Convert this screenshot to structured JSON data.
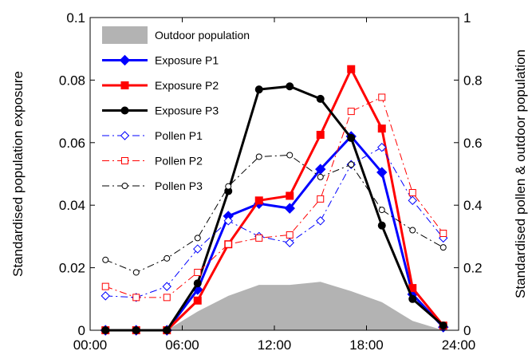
{
  "chart_data": {
    "type": "line",
    "x_ticks": [
      "00:00",
      "06:00",
      "12:00",
      "18:00",
      "24:00"
    ],
    "x_tick_hours": [
      0,
      6,
      12,
      18,
      24
    ],
    "xlim_hours": [
      0,
      24
    ],
    "ylabel_left": "Standardised population exposure",
    "ylabel_right": "Standardised pollen & outdoor population",
    "ylim_left": [
      0,
      0.1
    ],
    "ylim_right": [
      0,
      1
    ],
    "y_ticks_left": [
      "0",
      "0.02",
      "0.04",
      "0.06",
      "0.08",
      "0.1"
    ],
    "y_ticks_left_values": [
      0,
      0.02,
      0.04,
      0.06,
      0.08,
      0.1
    ],
    "y_ticks_right": [
      "0",
      "0.2",
      "0.4",
      "0.6",
      "0.8",
      "1"
    ],
    "y_ticks_right_values": [
      0,
      0.2,
      0.4,
      0.6,
      0.8,
      1
    ],
    "grid": false,
    "legend_position": "top-left",
    "x_hours": [
      1,
      3,
      5,
      7,
      9,
      11,
      13,
      15,
      17,
      19,
      21,
      23
    ],
    "area": {
      "name": "Outdoor population",
      "axis": "right",
      "color": "#b3b3b3",
      "x_hours": [
        5,
        7,
        9,
        11,
        13,
        15,
        17,
        19,
        21,
        23
      ],
      "values": [
        0,
        0.06,
        0.11,
        0.145,
        0.145,
        0.155,
        0.125,
        0.09,
        0.03,
        0
      ]
    },
    "series": [
      {
        "name": "Exposure P1",
        "axis": "left",
        "color": "#0000ff",
        "style": "solid",
        "marker": "diamond-filled",
        "values": [
          0,
          0,
          0,
          0.013,
          0.0365,
          0.0405,
          0.039,
          0.0515,
          0.062,
          0.0505,
          0.0115,
          0.001
        ]
      },
      {
        "name": "Exposure P2",
        "axis": "left",
        "color": "#ff0000",
        "style": "solid",
        "marker": "square-filled",
        "values": [
          0,
          0,
          0,
          0.0095,
          0.0275,
          0.0415,
          0.043,
          0.0625,
          0.0835,
          0.0645,
          0.0135,
          0.0015
        ]
      },
      {
        "name": "Exposure P3",
        "axis": "left",
        "color": "#000000",
        "style": "solid",
        "marker": "circle-filled",
        "values": [
          0,
          0,
          0,
          0.015,
          0.0445,
          0.077,
          0.078,
          0.074,
          0.0615,
          0.0335,
          0.01,
          0.0015
        ]
      },
      {
        "name": "Pollen P1",
        "axis": "right",
        "color": "#0000ff",
        "style": "dashdot",
        "marker": "diamond-open",
        "values": [
          0.11,
          0.105,
          0.14,
          0.26,
          0.35,
          0.3,
          0.28,
          0.35,
          0.53,
          0.585,
          0.415,
          0.295
        ]
      },
      {
        "name": "Pollen P2",
        "axis": "right",
        "color": "#ff0000",
        "style": "dashdot",
        "marker": "square-open",
        "values": [
          0.14,
          0.105,
          0.105,
          0.185,
          0.275,
          0.295,
          0.305,
          0.42,
          0.7,
          0.745,
          0.44,
          0.31
        ]
      },
      {
        "name": "Pollen P3",
        "axis": "right",
        "color": "#000000",
        "style": "dashdot",
        "marker": "circle-open",
        "values": [
          0.225,
          0.185,
          0.23,
          0.295,
          0.46,
          0.555,
          0.56,
          0.49,
          0.53,
          0.385,
          0.32,
          0.265
        ]
      }
    ]
  }
}
